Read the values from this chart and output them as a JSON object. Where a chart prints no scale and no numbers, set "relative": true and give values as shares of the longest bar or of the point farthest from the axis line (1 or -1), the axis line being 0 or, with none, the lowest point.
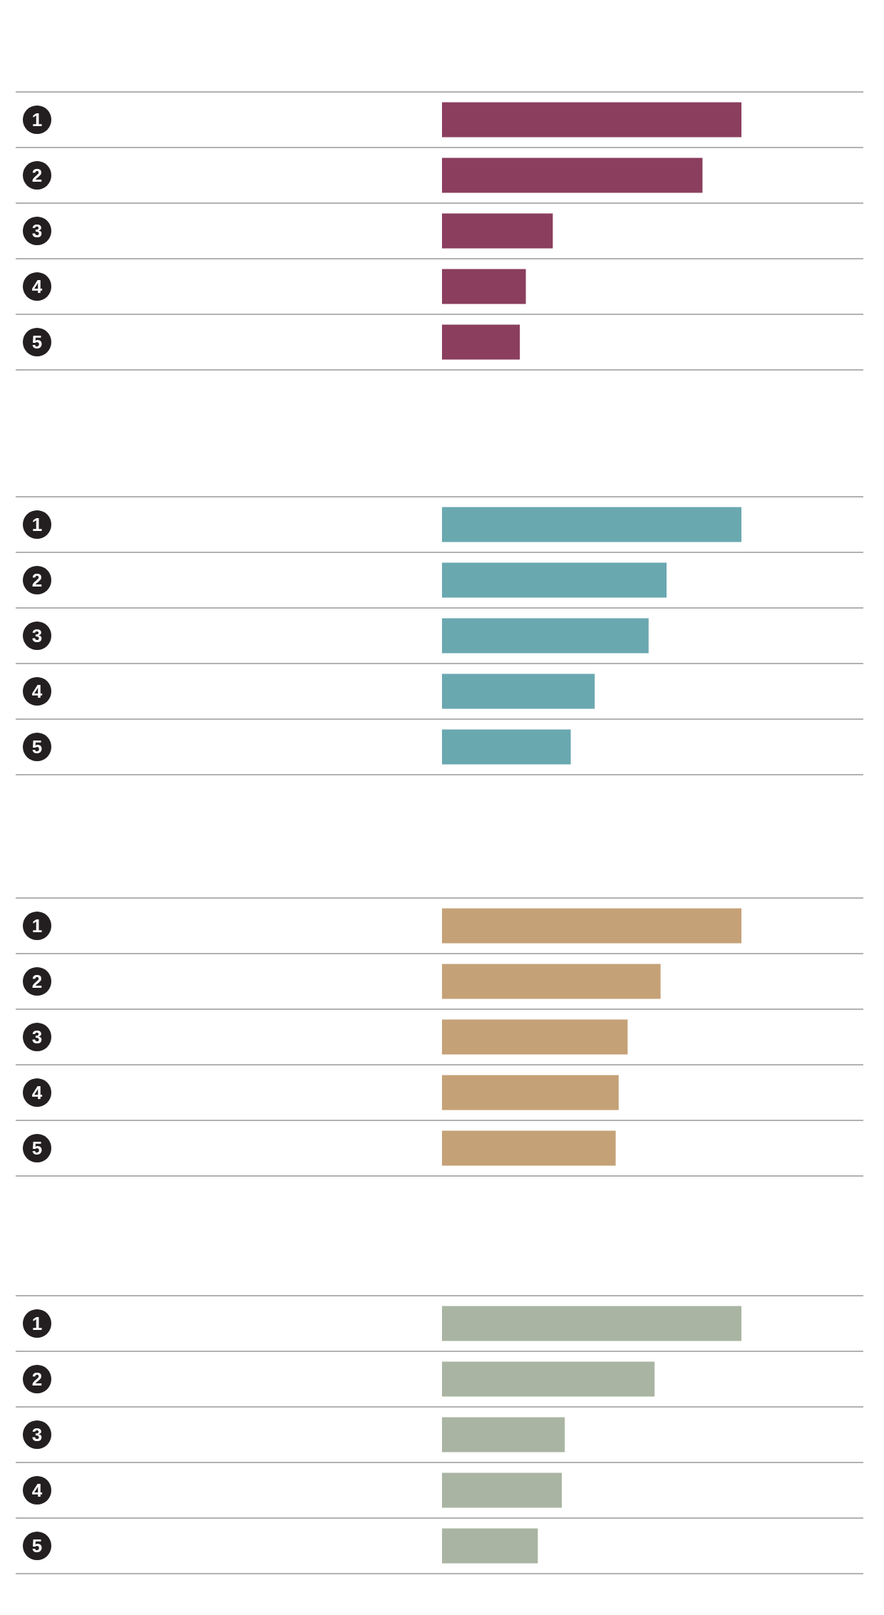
{
  "chart_data": [
    {
      "type": "bar",
      "orientation": "horizontal",
      "relative": true,
      "grid": "y",
      "categories": [
        "1",
        "2",
        "3",
        "4",
        "5"
      ],
      "color": "#8b3e5e",
      "values": [
        1,
        0.87,
        0.37,
        0.28,
        0.26
      ]
    },
    {
      "type": "bar",
      "orientation": "horizontal",
      "relative": true,
      "grid": "y",
      "categories": [
        "1",
        "2",
        "3",
        "4",
        "5"
      ],
      "color": "#6aa8b0",
      "values": [
        1,
        0.75,
        0.69,
        0.51,
        0.43
      ]
    },
    {
      "type": "bar",
      "orientation": "horizontal",
      "relative": true,
      "grid": "y",
      "categories": [
        "1",
        "2",
        "3",
        "4",
        "5"
      ],
      "color": "#c5a177",
      "values": [
        1,
        0.73,
        0.62,
        0.59,
        0.58
      ]
    },
    {
      "type": "bar",
      "orientation": "horizontal",
      "relative": true,
      "grid": "y",
      "categories": [
        "1",
        "2",
        "3",
        "4",
        "5"
      ],
      "color": "#a9b5a2",
      "values": [
        1,
        0.71,
        0.41,
        0.4,
        0.32
      ]
    }
  ]
}
